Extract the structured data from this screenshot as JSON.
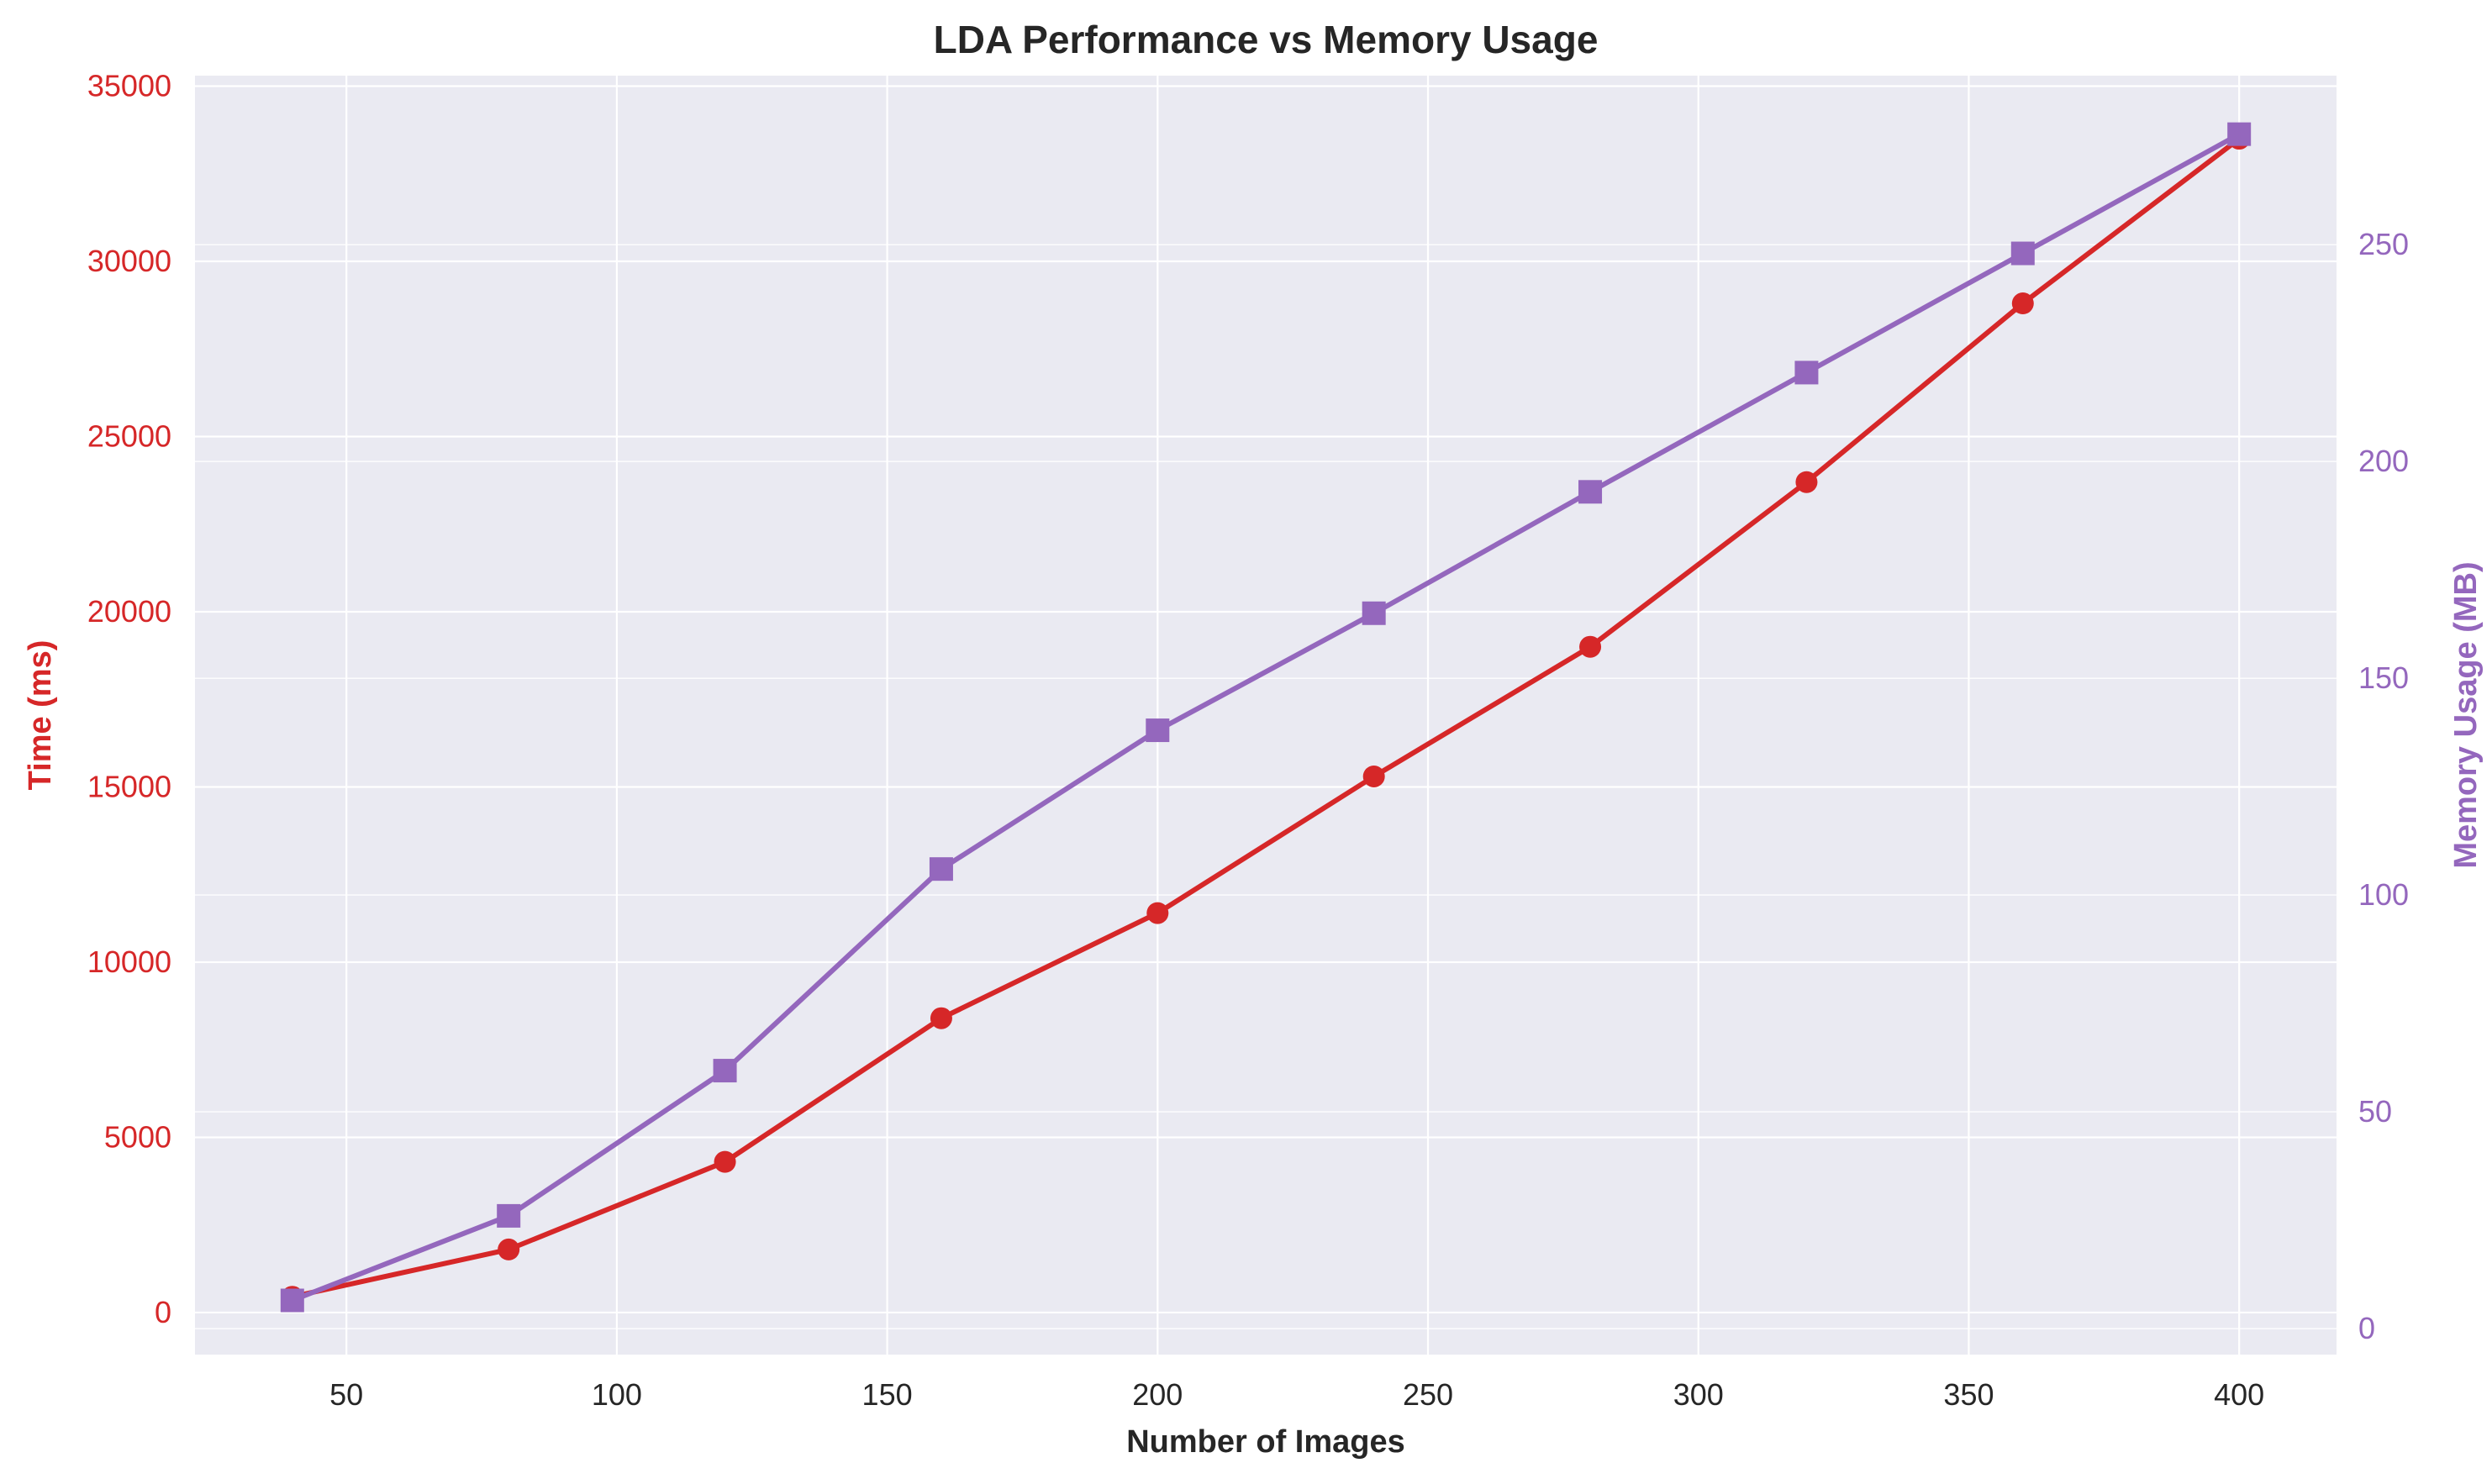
{
  "chart_data": {
    "type": "line",
    "title": "LDA Performance vs Memory Usage",
    "xlabel": "Number of Images",
    "x": [
      40,
      80,
      120,
      160,
      200,
      240,
      280,
      320,
      360,
      400
    ],
    "xlim": [
      22,
      418
    ],
    "xticks": [
      50,
      100,
      150,
      200,
      250,
      300,
      350,
      400
    ],
    "grid": true,
    "legend": "none",
    "y_left": {
      "label": "Time (ms)",
      "color": "#d62728",
      "ylim": [
        -1200,
        35300
      ],
      "ticks": [
        0,
        5000,
        10000,
        15000,
        20000,
        25000,
        30000,
        35000
      ]
    },
    "y_right": {
      "label": "Memory Usage (MB)",
      "color": "#9467bd",
      "ylim": [
        -6,
        289
      ],
      "ticks": [
        0,
        50,
        100,
        150,
        200,
        250
      ]
    },
    "series": [
      {
        "axis": "left",
        "marker": "circle",
        "color": "#d62728",
        "values": [
          450,
          1800,
          4300,
          8400,
          11400,
          15300,
          19000,
          23700,
          28800,
          33500
        ]
      },
      {
        "axis": "right",
        "marker": "square",
        "color": "#9467bd",
        "values": [
          6.5,
          26,
          59.5,
          106,
          138,
          165,
          193,
          220.5,
          248,
          275.5
        ]
      }
    ]
  }
}
